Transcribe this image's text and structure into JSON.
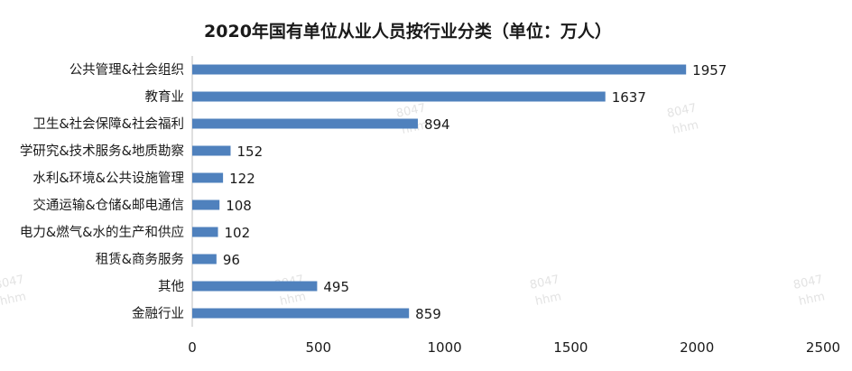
{
  "chart_data": {
    "type": "bar",
    "orientation": "horizontal",
    "title": "2020年国有单位从业人员按行业分类（单位：万人）",
    "categories": [
      "公共管理&社会组织",
      "教育业",
      "卫生&社会保障&社会福利",
      "学研究&技术服务&地质勘察",
      "水利&环境&公共设施管理",
      "交通运输&仓储&邮电通信",
      "电力&燃气&水的生产和供应",
      "租赁&商务服务",
      "其他",
      "金融行业"
    ],
    "values": [
      1957,
      1637,
      894,
      152,
      122,
      108,
      102,
      96,
      495,
      859
    ],
    "xlim": [
      0,
      2500
    ],
    "xticks": [
      0,
      500,
      1000,
      1500,
      2000,
      2500
    ],
    "xlabel": "",
    "ylabel": "",
    "grid": false,
    "legend": "none",
    "bar_color": "#4f81bd"
  },
  "watermarks": [
    "8047",
    "hhm"
  ]
}
